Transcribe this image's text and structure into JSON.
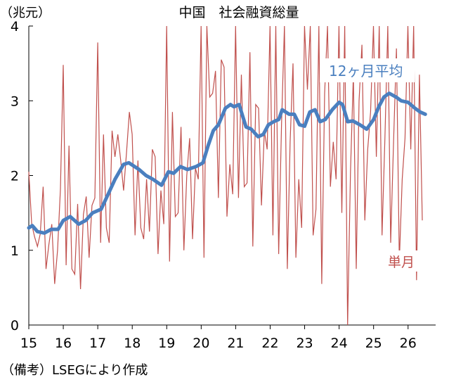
{
  "chart_data": {
    "type": "line",
    "title": "中国　社会融資総量",
    "unit_label": "（兆元）",
    "ylim": [
      0,
      4
    ],
    "y_ticks": [
      "0",
      "1",
      "2",
      "3",
      "4"
    ],
    "x_ticks": [
      "15",
      "16",
      "17",
      "18",
      "19",
      "20",
      "21",
      "22",
      "23",
      "24",
      "25",
      "26"
    ],
    "x_range": [
      15.0,
      26.8
    ],
    "grid": false,
    "colors": {
      "monthly": "#c0504d",
      "average": "#4a7fbf"
    },
    "series": [
      {
        "name": "単月",
        "role": "monthly",
        "start": 15.0,
        "step": 0.0833,
        "values": [
          2.05,
          1.35,
          1.18,
          1.05,
          1.22,
          1.85,
          0.75,
          1.08,
          1.35,
          0.55,
          1.0,
          1.82,
          3.48,
          0.8,
          2.4,
          0.75,
          0.68,
          1.62,
          0.48,
          1.48,
          1.72,
          0.9,
          1.6,
          1.7,
          3.78,
          1.1,
          2.55,
          1.3,
          1.1,
          2.6,
          2.25,
          2.55,
          2.2,
          1.8,
          2.3,
          2.85,
          2.55,
          1.2,
          2.2,
          1.3,
          1.15,
          1.95,
          1.25,
          2.35,
          2.25,
          0.95,
          1.8,
          1.35,
          4.0,
          0.85,
          2.85,
          1.45,
          1.5,
          2.65,
          1.0,
          2.0,
          2.5,
          1.15,
          2.1,
          1.95,
          4.0,
          0.9,
          4.0,
          3.05,
          3.1,
          3.4,
          1.7,
          3.55,
          3.45,
          1.45,
          2.15,
          1.75,
          4.0,
          1.7,
          3.35,
          1.85,
          1.9,
          3.65,
          1.05,
          2.95,
          2.9,
          1.6,
          2.6,
          2.35,
          4.0,
          1.2,
          4.0,
          0.95,
          2.7,
          4.0,
          0.75,
          2.45,
          3.5,
          0.9,
          1.95,
          1.3,
          4.0,
          3.15,
          4.0,
          1.2,
          1.55,
          4.0,
          0.55,
          3.1,
          4.0,
          1.85,
          2.45,
          1.95,
          4.0,
          1.5,
          4.0,
          0.0,
          2.05,
          3.35,
          0.75,
          3.0,
          3.75,
          1.4,
          2.35,
          2.85,
          4.0,
          2.25,
          4.0,
          1.2,
          2.5,
          4.0,
          1.1,
          2.45,
          3.7,
          0.85,
          1.95,
          2.5,
          4.0,
          2.35,
          4.0,
          0.6,
          3.35,
          1.4
        ]
      },
      {
        "name": "12ヶ月平均",
        "role": "average",
        "points": [
          [
            15.0,
            1.3
          ],
          [
            15.1,
            1.33
          ],
          [
            15.25,
            1.25
          ],
          [
            15.45,
            1.23
          ],
          [
            15.65,
            1.28
          ],
          [
            15.85,
            1.28
          ],
          [
            16.0,
            1.4
          ],
          [
            16.2,
            1.45
          ],
          [
            16.45,
            1.35
          ],
          [
            16.65,
            1.4
          ],
          [
            16.85,
            1.5
          ],
          [
            17.1,
            1.55
          ],
          [
            17.3,
            1.75
          ],
          [
            17.5,
            1.95
          ],
          [
            17.75,
            2.15
          ],
          [
            17.9,
            2.17
          ],
          [
            18.2,
            2.08
          ],
          [
            18.4,
            2.0
          ],
          [
            18.6,
            1.95
          ],
          [
            18.85,
            1.87
          ],
          [
            19.05,
            2.05
          ],
          [
            19.2,
            2.03
          ],
          [
            19.4,
            2.12
          ],
          [
            19.6,
            2.08
          ],
          [
            19.85,
            2.12
          ],
          [
            20.05,
            2.17
          ],
          [
            20.2,
            2.4
          ],
          [
            20.35,
            2.6
          ],
          [
            20.5,
            2.68
          ],
          [
            20.7,
            2.9
          ],
          [
            20.85,
            2.95
          ],
          [
            20.95,
            2.92
          ],
          [
            21.1,
            2.95
          ],
          [
            21.3,
            2.65
          ],
          [
            21.45,
            2.62
          ],
          [
            21.65,
            2.52
          ],
          [
            21.8,
            2.55
          ],
          [
            21.95,
            2.68
          ],
          [
            22.1,
            2.72
          ],
          [
            22.25,
            2.75
          ],
          [
            22.35,
            2.88
          ],
          [
            22.55,
            2.82
          ],
          [
            22.7,
            2.82
          ],
          [
            22.85,
            2.68
          ],
          [
            23.0,
            2.66
          ],
          [
            23.15,
            2.85
          ],
          [
            23.3,
            2.88
          ],
          [
            23.45,
            2.72
          ],
          [
            23.6,
            2.75
          ],
          [
            23.8,
            2.88
          ],
          [
            24.0,
            2.98
          ],
          [
            24.1,
            2.95
          ],
          [
            24.25,
            2.72
          ],
          [
            24.4,
            2.73
          ],
          [
            24.6,
            2.68
          ],
          [
            24.8,
            2.62
          ],
          [
            25.0,
            2.75
          ],
          [
            25.15,
            2.92
          ],
          [
            25.3,
            3.05
          ],
          [
            25.45,
            3.1
          ],
          [
            25.65,
            3.05
          ],
          [
            25.8,
            3.0
          ],
          [
            26.0,
            2.98
          ],
          [
            26.2,
            2.9
          ],
          [
            26.35,
            2.85
          ],
          [
            26.5,
            2.82
          ]
        ]
      }
    ],
    "labels": {
      "average": "12ヶ月平均",
      "monthly": "単月"
    }
  },
  "source_note": "（備考）LSEGにより作成"
}
